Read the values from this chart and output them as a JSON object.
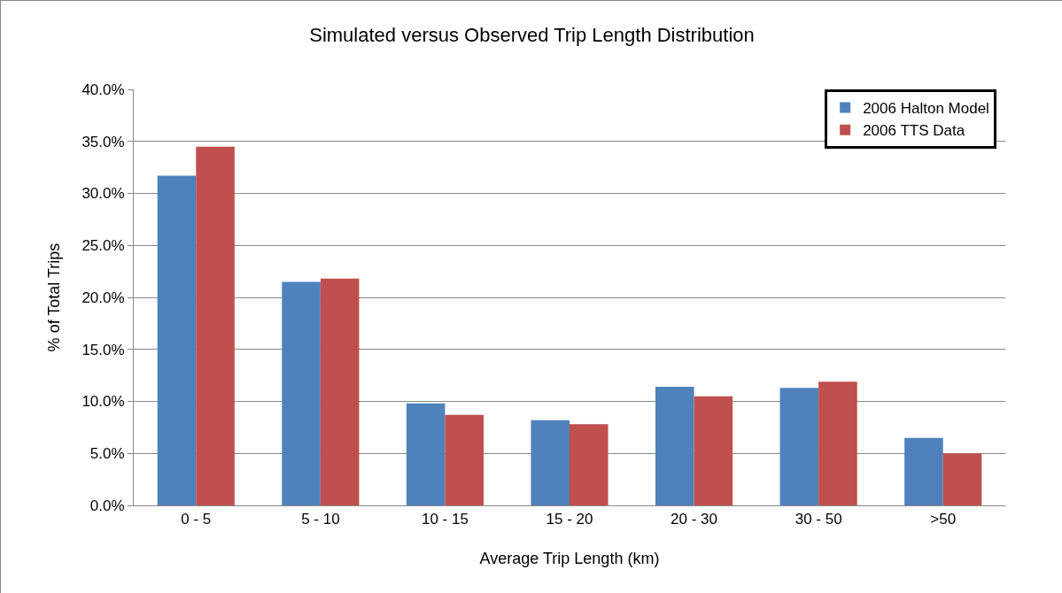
{
  "chart_data": {
    "type": "bar",
    "title": "Simulated versus Observed Trip Length Distribution",
    "xlabel": "Average Trip Length (km)",
    "ylabel": "% of Total Trips",
    "categories": [
      "0 - 5",
      "5 - 10",
      "10 - 15",
      "15 - 20",
      "20 - 30",
      "30 - 50",
      ">50"
    ],
    "series": [
      {
        "name": "2006 Halton Model",
        "color": "#4f81bd",
        "values": [
          31.7,
          21.5,
          9.8,
          8.2,
          11.4,
          11.3,
          6.5
        ]
      },
      {
        "name": "2006 TTS Data",
        "color": "#c0504d",
        "values": [
          34.5,
          21.8,
          8.7,
          7.8,
          10.5,
          11.9,
          5.0
        ]
      }
    ],
    "ylim": [
      0,
      40
    ],
    "yticks": [
      {
        "value": 0,
        "label": "0.0%"
      },
      {
        "value": 5,
        "label": "5.0%"
      },
      {
        "value": 10,
        "label": "10.0%"
      },
      {
        "value": 15,
        "label": "15.0%"
      },
      {
        "value": 20,
        "label": "20.0%"
      },
      {
        "value": 25,
        "label": "25.0%"
      },
      {
        "value": 30,
        "label": "30.0%"
      },
      {
        "value": 35,
        "label": "35.0%"
      },
      {
        "value": 40,
        "label": "40.0%"
      }
    ],
    "grid": "y",
    "legend": "top right"
  }
}
